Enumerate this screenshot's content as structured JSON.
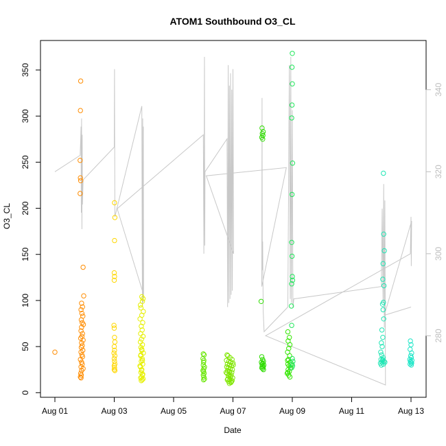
{
  "chart_data": {
    "type": "scatter",
    "title": "ATOM1 Southbound O3_CL",
    "xlabel": "Date",
    "ylabel": "O3_CL",
    "x_ticks": [
      "Aug 01",
      "Aug 03",
      "Aug 05",
      "Aug 07",
      "Aug 09",
      "Aug 11",
      "Aug 13"
    ],
    "x_range": [
      "Jul 31 23:00",
      "Aug 13 12:00"
    ],
    "y_ticks": [
      0,
      50,
      100,
      150,
      200,
      250,
      300,
      350
    ],
    "y_range": [
      -5,
      382
    ],
    "y2_ticks": [
      280,
      300,
      320,
      340
    ],
    "y2_range": [
      265,
      352
    ],
    "grid": false,
    "legend": "none",
    "series": [
      {
        "color": "#FF8C00",
        "points": [
          [
            0.0,
            44
          ],
          [
            0.87,
            338
          ],
          [
            0.86,
            306
          ],
          [
            0.85,
            252
          ],
          [
            0.86,
            233
          ],
          [
            0.87,
            230
          ],
          [
            0.85,
            216
          ],
          [
            0.95,
            136
          ],
          [
            0.97,
            105
          ],
          [
            0.9,
            97
          ],
          [
            0.93,
            93
          ],
          [
            0.88,
            90
          ],
          [
            0.91,
            86
          ],
          [
            0.94,
            83
          ],
          [
            0.89,
            79
          ],
          [
            0.92,
            76
          ],
          [
            0.96,
            74
          ],
          [
            0.9,
            71
          ],
          [
            0.88,
            67
          ],
          [
            0.93,
            64
          ],
          [
            0.91,
            61
          ],
          [
            0.87,
            59
          ],
          [
            0.95,
            57
          ],
          [
            0.9,
            54
          ],
          [
            0.92,
            51
          ],
          [
            0.89,
            49
          ],
          [
            0.94,
            46
          ],
          [
            0.88,
            44
          ],
          [
            0.91,
            41
          ],
          [
            0.93,
            39
          ],
          [
            0.86,
            36
          ],
          [
            0.9,
            33
          ],
          [
            0.92,
            31
          ],
          [
            0.88,
            28
          ],
          [
            0.95,
            26
          ],
          [
            0.9,
            24
          ],
          [
            0.87,
            21
          ],
          [
            0.89,
            19
          ],
          [
            0.86,
            17
          ],
          [
            0.88,
            16
          ]
        ]
      },
      {
        "color": "#FFD700",
        "points": [
          [
            2.01,
            206
          ],
          [
            2.02,
            190
          ],
          [
            2.01,
            165
          ],
          [
            2.0,
            130
          ],
          [
            2.01,
            126
          ],
          [
            2.0,
            122
          ],
          [
            1.99,
            73
          ],
          [
            2.0,
            70
          ],
          [
            2.01,
            60
          ],
          [
            2.02,
            55
          ],
          [
            2.0,
            50
          ],
          [
            2.01,
            46
          ],
          [
            1.99,
            43
          ],
          [
            2.02,
            40
          ],
          [
            2.0,
            37
          ],
          [
            2.01,
            34
          ],
          [
            2.02,
            31
          ],
          [
            2.0,
            29
          ],
          [
            2.01,
            27
          ],
          [
            2.0,
            25
          ],
          [
            2.02,
            24
          ]
        ]
      },
      {
        "color": "#E6F000",
        "points": [
          [
            2.93,
            104
          ],
          [
            2.97,
            102
          ],
          [
            2.95,
            99
          ],
          [
            2.88,
            95
          ],
          [
            2.9,
            92
          ],
          [
            2.98,
            88
          ],
          [
            2.93,
            84
          ],
          [
            2.87,
            80
          ],
          [
            2.96,
            76
          ],
          [
            2.91,
            72
          ],
          [
            2.94,
            68
          ],
          [
            2.89,
            64
          ],
          [
            2.97,
            61
          ],
          [
            2.92,
            58
          ],
          [
            2.88,
            55
          ],
          [
            2.95,
            52
          ],
          [
            2.9,
            49
          ],
          [
            2.93,
            46
          ],
          [
            2.98,
            43
          ],
          [
            2.89,
            40
          ],
          [
            2.94,
            37
          ],
          [
            2.91,
            34
          ],
          [
            2.96,
            31
          ],
          [
            2.88,
            28
          ],
          [
            2.93,
            25
          ],
          [
            2.9,
            22
          ],
          [
            2.95,
            19
          ],
          [
            2.92,
            17
          ],
          [
            2.97,
            15
          ],
          [
            2.91,
            13
          ],
          [
            2.94,
            14
          ],
          [
            2.89,
            16
          ],
          [
            2.96,
            20
          ],
          [
            2.92,
            24
          ],
          [
            2.87,
            29
          ],
          [
            2.95,
            35
          ],
          [
            2.9,
            41
          ],
          [
            2.93,
            47
          ]
        ]
      },
      {
        "color": "#66E600",
        "points": [
          [
            5.0,
            42
          ],
          [
            5.03,
            41
          ],
          [
            4.99,
            37
          ],
          [
            5.02,
            35
          ],
          [
            5.01,
            33
          ],
          [
            5.0,
            30
          ],
          [
            5.04,
            28
          ],
          [
            5.02,
            26
          ],
          [
            4.99,
            24
          ],
          [
            5.01,
            23
          ],
          [
            5.03,
            21
          ],
          [
            5.0,
            19
          ],
          [
            5.02,
            17
          ],
          [
            5.04,
            15
          ],
          [
            5.01,
            14
          ]
        ]
      },
      {
        "color": "#7FE600",
        "points": [
          [
            5.8,
            41
          ],
          [
            5.83,
            40
          ],
          [
            5.9,
            38
          ],
          [
            5.97,
            36
          ],
          [
            5.78,
            35
          ],
          [
            5.86,
            34
          ],
          [
            5.93,
            33
          ],
          [
            6.0,
            32
          ],
          [
            5.81,
            31
          ],
          [
            5.88,
            30
          ],
          [
            5.95,
            29
          ],
          [
            5.79,
            28
          ],
          [
            5.84,
            27
          ],
          [
            5.91,
            26
          ],
          [
            5.98,
            25
          ],
          [
            5.82,
            24
          ],
          [
            5.89,
            23
          ],
          [
            5.96,
            22
          ],
          [
            5.8,
            21
          ],
          [
            5.87,
            20
          ],
          [
            5.94,
            19
          ],
          [
            5.85,
            18
          ],
          [
            5.92,
            17
          ],
          [
            5.99,
            16
          ],
          [
            5.83,
            15
          ],
          [
            5.9,
            14
          ],
          [
            5.97,
            13
          ],
          [
            5.86,
            12
          ],
          [
            5.93,
            11
          ],
          [
            5.88,
            10
          ],
          [
            5.95,
            12
          ],
          [
            5.81,
            14
          ],
          [
            6.01,
            30
          ],
          [
            5.77,
            22
          ]
        ]
      },
      {
        "color": "#2EDC00",
        "points": [
          [
            6.98,
            287
          ],
          [
            7.02,
            283
          ],
          [
            6.99,
            281
          ],
          [
            7.01,
            279
          ],
          [
            6.97,
            277
          ],
          [
            7.0,
            275
          ],
          [
            6.95,
            99
          ],
          [
            6.97,
            39
          ],
          [
            7.0,
            36
          ],
          [
            7.03,
            34
          ],
          [
            6.96,
            33
          ],
          [
            7.01,
            32
          ],
          [
            6.98,
            31
          ],
          [
            7.04,
            30
          ],
          [
            6.99,
            29
          ],
          [
            7.02,
            28
          ],
          [
            6.97,
            27
          ],
          [
            7.0,
            26
          ],
          [
            7.03,
            25
          ]
        ]
      },
      {
        "color": "#33E600",
        "points": [
          [
            7.85,
            66
          ],
          [
            7.9,
            60
          ],
          [
            7.86,
            56
          ],
          [
            7.92,
            52
          ],
          [
            7.88,
            48
          ],
          [
            7.84,
            44
          ],
          [
            7.91,
            40
          ],
          [
            7.87,
            36
          ],
          [
            7.93,
            33
          ],
          [
            7.85,
            31
          ],
          [
            7.89,
            29
          ],
          [
            7.94,
            27
          ],
          [
            7.86,
            25
          ],
          [
            7.9,
            23
          ],
          [
            7.83,
            21
          ],
          [
            7.88,
            19
          ],
          [
            7.92,
            17
          ],
          [
            7.85,
            22
          ],
          [
            7.95,
            30
          ],
          [
            7.84,
            35
          ]
        ]
      },
      {
        "color": "#1FE65A",
        "points": [
          [
            8.0,
            368
          ],
          [
            7.99,
            353
          ],
          [
            8.0,
            335
          ],
          [
            7.99,
            312
          ],
          [
            7.98,
            298
          ],
          [
            8.01,
            249
          ],
          [
            7.99,
            215
          ],
          [
            7.98,
            163
          ],
          [
            7.99,
            148
          ],
          [
            8.0,
            126
          ],
          [
            8.01,
            122
          ],
          [
            7.98,
            118
          ],
          [
            7.97,
            94
          ],
          [
            7.98,
            73
          ],
          [
            8.0,
            37
          ],
          [
            8.02,
            34
          ],
          [
            7.99,
            31
          ],
          [
            8.01,
            29
          ],
          [
            7.98,
            27
          ]
        ]
      },
      {
        "color": "#1EE6B4",
        "points": [
          [
            11.07,
            238
          ],
          [
            11.08,
            172
          ],
          [
            11.1,
            154
          ],
          [
            11.06,
            140
          ],
          [
            11.05,
            123
          ],
          [
            11.09,
            116
          ],
          [
            11.07,
            98
          ],
          [
            11.04,
            96
          ],
          [
            11.06,
            90
          ],
          [
            11.08,
            80
          ],
          [
            11.02,
            68
          ],
          [
            11.05,
            60
          ],
          [
            11.0,
            54
          ],
          [
            11.03,
            50
          ],
          [
            10.98,
            44
          ],
          [
            11.01,
            41
          ],
          [
            11.06,
            38
          ],
          [
            10.99,
            36
          ],
          [
            11.04,
            35
          ],
          [
            11.09,
            34
          ],
          [
            11.02,
            33
          ],
          [
            10.97,
            32
          ],
          [
            11.07,
            31
          ],
          [
            11.12,
            33
          ],
          [
            11.0,
            30
          ],
          [
            11.05,
            36
          ]
        ]
      },
      {
        "color": "#1EE6C8",
        "points": [
          [
            11.98,
            56
          ],
          [
            12.0,
            52
          ],
          [
            11.97,
            47
          ],
          [
            12.02,
            43
          ],
          [
            11.99,
            40
          ],
          [
            12.01,
            38
          ],
          [
            11.96,
            36
          ],
          [
            12.03,
            35
          ],
          [
            11.98,
            34
          ],
          [
            12.0,
            33
          ],
          [
            12.02,
            32
          ],
          [
            11.97,
            31
          ],
          [
            12.01,
            30
          ]
        ]
      }
    ],
    "secondary_trace": {
      "color": "#c8c8c8",
      "points": [
        [
          0.0,
          320
        ],
        [
          0.85,
          324
        ],
        [
          0.87,
          328
        ],
        [
          0.88,
          331
        ],
        [
          0.89,
          310
        ],
        [
          0.9,
          333
        ],
        [
          0.91,
          306
        ],
        [
          0.92,
          329
        ],
        [
          0.93,
          312
        ],
        [
          0.95,
          318
        ],
        [
          2.0,
          326
        ],
        [
          2.01,
          345
        ],
        [
          2.02,
          309
        ],
        [
          2.93,
          336
        ],
        [
          2.94,
          300
        ],
        [
          2.95,
          287
        ],
        [
          2.96,
          333
        ],
        [
          2.97,
          288
        ],
        [
          2.98,
          331
        ],
        [
          2.99,
          290
        ],
        [
          2.1,
          311
        ],
        [
          5.0,
          329
        ],
        [
          5.02,
          300
        ],
        [
          5.04,
          348
        ],
        [
          5.05,
          302
        ],
        [
          5.06,
          320
        ],
        [
          5.8,
          328
        ],
        [
          5.82,
          287
        ],
        [
          5.84,
          346
        ],
        [
          5.86,
          288
        ],
        [
          5.88,
          341
        ],
        [
          5.9,
          289
        ],
        [
          5.92,
          344
        ],
        [
          5.94,
          290
        ],
        [
          5.96,
          340
        ],
        [
          5.98,
          291
        ],
        [
          6.0,
          345
        ],
        [
          6.02,
          300
        ],
        [
          5.1,
          319
        ],
        [
          7.8,
          321
        ],
        [
          6.97,
          292
        ],
        [
          6.98,
          338
        ],
        [
          6.99,
          296
        ],
        [
          7.0,
          303
        ],
        [
          7.02,
          286
        ],
        [
          7.05,
          281
        ],
        [
          7.85,
          287
        ],
        [
          7.9,
          346
        ],
        [
          7.93,
          289
        ],
        [
          7.95,
          348
        ],
        [
          7.97,
          288
        ],
        [
          8.0,
          335
        ],
        [
          8.02,
          287
        ],
        [
          8.05,
          289
        ],
        [
          11.0,
          292
        ],
        [
          11.03,
          311
        ],
        [
          11.06,
          288
        ],
        [
          11.08,
          317
        ],
        [
          11.1,
          282
        ],
        [
          11.12,
          313
        ],
        [
          11.14,
          268
        ],
        [
          7.1,
          280
        ],
        [
          11.98,
          300
        ],
        [
          12.0,
          309
        ],
        [
          12.01,
          297
        ],
        [
          12.02,
          308
        ],
        [
          11.1,
          285
        ],
        [
          12.0,
          287
        ]
      ]
    }
  }
}
